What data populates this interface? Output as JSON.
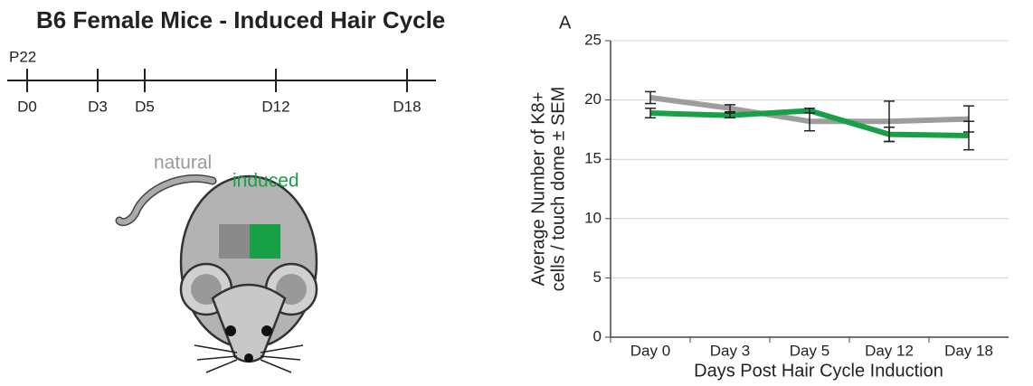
{
  "header": {
    "title": "B6 Female Mice - Induced Hair Cycle",
    "panel": "A"
  },
  "timeline": {
    "start": "P22",
    "labels": [
      "D0",
      "D3",
      "D5",
      "D12",
      "D18"
    ]
  },
  "mouse": {
    "labels": [
      "natural",
      "induced"
    ]
  },
  "chart_data": {
    "type": "line",
    "xlabel": "Days Post Hair Cycle Induction",
    "ylabel": [
      "Average Number of K8+",
      "cells / touch dome ± SEM"
    ],
    "categories": [
      "Day 0",
      "Day 3",
      "Day 5",
      "Day 12",
      "Day 18"
    ],
    "series": [
      {
        "color": "#9d9d9d",
        "values": [
          20.2,
          19.3,
          18.2,
          18.2,
          18.4
        ],
        "errors": [
          0.5,
          0.3,
          0.8,
          1.7,
          1.1
        ]
      },
      {
        "color": "#17a045",
        "values": [
          18.9,
          18.7,
          19.1,
          17.1,
          17.0
        ],
        "errors": [
          0.4,
          0.2,
          0.2,
          0.6,
          1.2
        ]
      }
    ],
    "ylim": [
      0,
      25
    ],
    "yticks": [
      0,
      5,
      10,
      15,
      20,
      25
    ],
    "grid": true
  }
}
